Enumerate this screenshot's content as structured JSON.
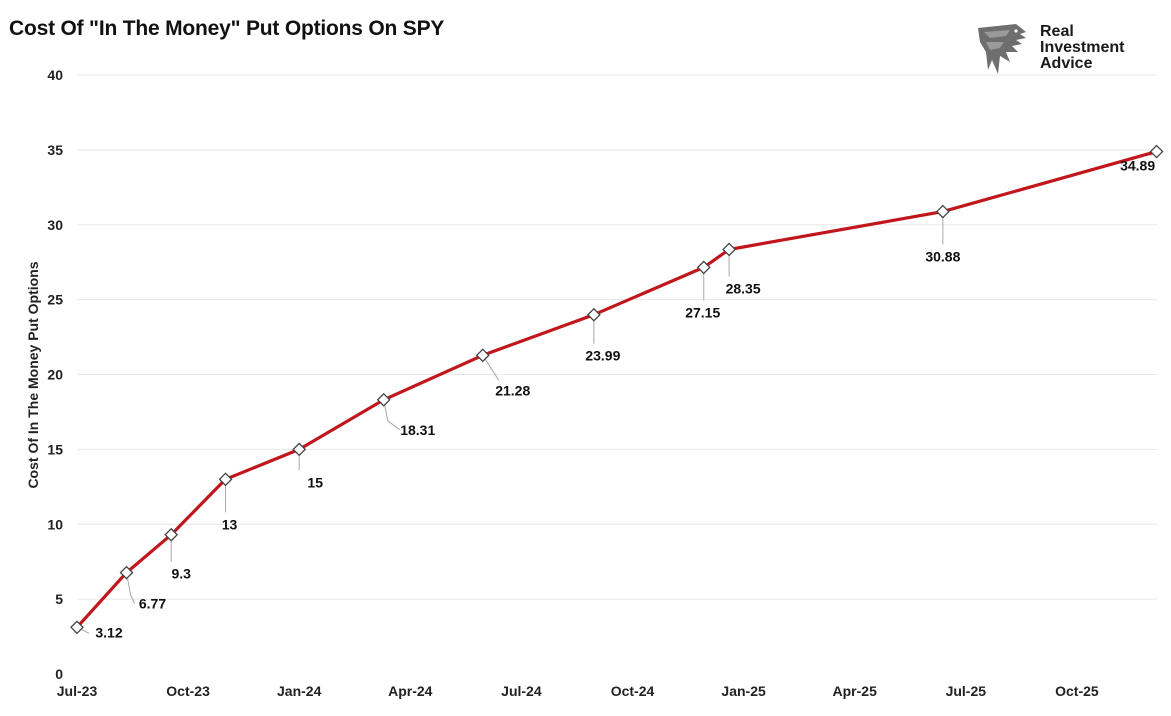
{
  "chart_data": {
    "type": "line",
    "title": "Cost Of \"In The Money\" Put Options On SPY",
    "xlabel": "",
    "ylabel": "Cost Of In The Money Put Options",
    "x_ticks": [
      "Jul-23",
      "Oct-23",
      "Jan-24",
      "Apr-24",
      "Jul-24",
      "Oct-24",
      "Jan-25",
      "Apr-25",
      "Jul-25",
      "Oct-25"
    ],
    "y_ticks": [
      "0",
      "5",
      "10",
      "15",
      "20",
      "25",
      "30",
      "35",
      "40"
    ],
    "ylim": [
      0,
      40
    ],
    "xlim": [
      "2023-07",
      "2026-01"
    ],
    "grid": "horizontal",
    "legend": "none",
    "series": [
      {
        "x": [
          "2023-07-15",
          "2023-08-25",
          "2023-10-01",
          "2023-11-15",
          "2024-01-15",
          "2024-03-25",
          "2024-06-15",
          "2024-09-15",
          "2024-12-15",
          "2025-01-05",
          "2025-07-01",
          "2025-12-25"
        ],
        "values": [
          3.12,
          6.77,
          9.3,
          13,
          15,
          18.31,
          21.28,
          23.99,
          27.15,
          28.35,
          30.88,
          34.89
        ],
        "labels": [
          "3.12",
          "6.77",
          "9.3",
          "13",
          "15",
          "18.31",
          "21.28",
          "23.99",
          "27.15",
          "28.35",
          "30.88",
          "34.89"
        ],
        "color": "#c0161c",
        "marker": "diamond"
      }
    ]
  },
  "brand": {
    "line1": "Real",
    "line2": "Investment",
    "line3": "Advice"
  },
  "colors": {
    "line": "#c0161c",
    "grid": "#e8e8e8",
    "marker_fill": "#ffffff",
    "marker_stroke": "#444444",
    "logo": "#6e6e6e"
  }
}
